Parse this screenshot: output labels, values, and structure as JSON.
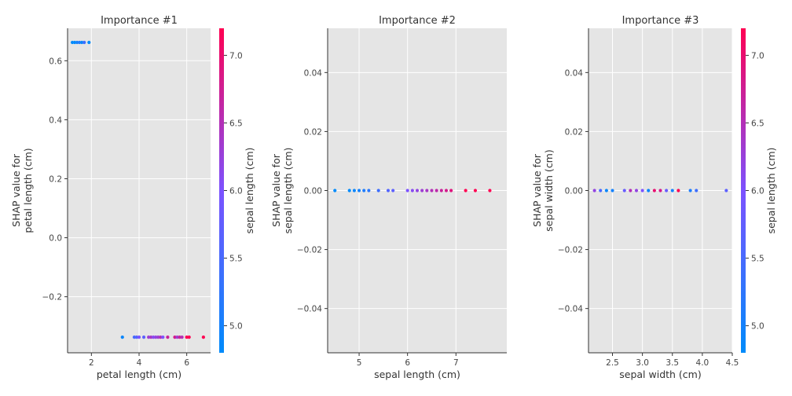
{
  "chart_data": [
    {
      "type": "scatter",
      "title": "Importance #1",
      "xlabel": "petal length (cm)",
      "ylabel_lines": [
        "SHAP value for",
        "petal length (cm)"
      ],
      "xlim": [
        1.0,
        7.0
      ],
      "ylim": [
        -0.39,
        0.71
      ],
      "xticks": [
        2,
        4,
        6
      ],
      "yticks": [
        -0.2,
        0.0,
        0.2,
        0.4,
        0.6
      ],
      "ytick_labels": [
        "−0.2",
        "0.0",
        "0.2",
        "0.4",
        "0.6"
      ],
      "grid": true,
      "points": [
        {
          "x": 1.2,
          "y": 0.662,
          "c": 4.6
        },
        {
          "x": 1.3,
          "y": 0.662,
          "c": 4.8
        },
        {
          "x": 1.4,
          "y": 0.662,
          "c": 5.0
        },
        {
          "x": 1.5,
          "y": 0.662,
          "c": 5.1
        },
        {
          "x": 1.6,
          "y": 0.662,
          "c": 4.9
        },
        {
          "x": 1.7,
          "y": 0.662,
          "c": 5.4
        },
        {
          "x": 1.9,
          "y": 0.662,
          "c": 4.8
        },
        {
          "x": 3.3,
          "y": -0.337,
          "c": 4.9
        },
        {
          "x": 3.8,
          "y": -0.337,
          "c": 5.5
        },
        {
          "x": 3.9,
          "y": -0.337,
          "c": 5.6
        },
        {
          "x": 4.0,
          "y": -0.337,
          "c": 6.0
        },
        {
          "x": 4.2,
          "y": -0.337,
          "c": 5.7
        },
        {
          "x": 4.4,
          "y": -0.337,
          "c": 6.3
        },
        {
          "x": 4.5,
          "y": -0.337,
          "c": 6.4
        },
        {
          "x": 4.6,
          "y": -0.337,
          "c": 6.1
        },
        {
          "x": 4.7,
          "y": -0.337,
          "c": 6.2
        },
        {
          "x": 4.8,
          "y": -0.337,
          "c": 6.3
        },
        {
          "x": 4.9,
          "y": -0.337,
          "c": 6.5
        },
        {
          "x": 5.0,
          "y": -0.337,
          "c": 6.0
        },
        {
          "x": 5.2,
          "y": -0.337,
          "c": 6.7
        },
        {
          "x": 5.5,
          "y": -0.337,
          "c": 6.8
        },
        {
          "x": 5.6,
          "y": -0.337,
          "c": 6.3
        },
        {
          "x": 5.7,
          "y": -0.337,
          "c": 6.7
        },
        {
          "x": 5.8,
          "y": -0.337,
          "c": 6.5
        },
        {
          "x": 6.0,
          "y": -0.337,
          "c": 7.2
        },
        {
          "x": 6.1,
          "y": -0.337,
          "c": 7.2
        },
        {
          "x": 6.7,
          "y": -0.337,
          "c": 7.7
        }
      ],
      "colorbar": {
        "label": "sepal length (cm)",
        "range": [
          4.8,
          7.2
        ],
        "ticks": [
          5.0,
          5.5,
          6.0,
          6.5,
          7.0
        ],
        "tick_labels": [
          "5.0",
          "5.5",
          "6.0",
          "6.5",
          "7.0"
        ]
      }
    },
    {
      "type": "scatter",
      "title": "Importance #2",
      "xlabel": "sepal length (cm)",
      "ylabel_lines": [
        "SHAP value for",
        "sepal length (cm)"
      ],
      "xlim": [
        4.35,
        8.05
      ],
      "ylim": [
        -0.055,
        0.055
      ],
      "xticks": [
        5,
        6,
        7
      ],
      "yticks": [
        -0.04,
        -0.02,
        0.0,
        0.02,
        0.04
      ],
      "ytick_labels": [
        "−0.04",
        "−0.02",
        "0.00",
        "0.02",
        "0.04"
      ],
      "grid": true,
      "points": [
        {
          "x": 4.5,
          "y": 0,
          "c": 4.5
        },
        {
          "x": 4.8,
          "y": 0,
          "c": 4.8
        },
        {
          "x": 4.9,
          "y": 0,
          "c": 4.9
        },
        {
          "x": 5.0,
          "y": 0,
          "c": 5.0
        },
        {
          "x": 5.1,
          "y": 0,
          "c": 5.1
        },
        {
          "x": 5.2,
          "y": 0,
          "c": 5.2
        },
        {
          "x": 5.4,
          "y": 0,
          "c": 5.4
        },
        {
          "x": 5.6,
          "y": 0,
          "c": 5.6
        },
        {
          "x": 5.7,
          "y": 0,
          "c": 5.7
        },
        {
          "x": 6.0,
          "y": 0,
          "c": 6.0
        },
        {
          "x": 6.1,
          "y": 0,
          "c": 6.1
        },
        {
          "x": 6.2,
          "y": 0,
          "c": 6.2
        },
        {
          "x": 6.3,
          "y": 0,
          "c": 6.3
        },
        {
          "x": 6.4,
          "y": 0,
          "c": 6.4
        },
        {
          "x": 6.5,
          "y": 0,
          "c": 6.5
        },
        {
          "x": 6.6,
          "y": 0,
          "c": 6.6
        },
        {
          "x": 6.7,
          "y": 0,
          "c": 6.7
        },
        {
          "x": 6.8,
          "y": 0,
          "c": 6.8
        },
        {
          "x": 6.9,
          "y": 0,
          "c": 6.9
        },
        {
          "x": 7.2,
          "y": 0,
          "c": 7.2
        },
        {
          "x": 7.4,
          "y": 0,
          "c": 7.4
        },
        {
          "x": 7.7,
          "y": 0,
          "c": 7.7
        }
      ]
    },
    {
      "type": "scatter",
      "title": "Importance #3",
      "xlabel": "sepal width (cm)",
      "ylabel_lines": [
        "SHAP value for",
        "sepal width (cm)"
      ],
      "xlim": [
        2.1,
        4.5
      ],
      "ylim": [
        -0.055,
        0.055
      ],
      "xticks": [
        2.5,
        3.0,
        3.5,
        4.0,
        4.5
      ],
      "xtick_labels": [
        "2.5",
        "3.0",
        "3.5",
        "4.0",
        "4.5"
      ],
      "yticks": [
        -0.04,
        -0.02,
        0.0,
        0.02,
        0.04
      ],
      "ytick_labels": [
        "−0.04",
        "−0.02",
        "0.00",
        "0.02",
        "0.04"
      ],
      "grid": true,
      "points": [
        {
          "x": 2.2,
          "y": 0,
          "c": 6.2
        },
        {
          "x": 2.3,
          "y": 0,
          "c": 5.5
        },
        {
          "x": 2.4,
          "y": 0,
          "c": 4.9
        },
        {
          "x": 2.5,
          "y": 0,
          "c": 5.0
        },
        {
          "x": 2.7,
          "y": 0,
          "c": 5.8
        },
        {
          "x": 2.8,
          "y": 0,
          "c": 6.5
        },
        {
          "x": 2.9,
          "y": 0,
          "c": 6.2
        },
        {
          "x": 3.0,
          "y": 0,
          "c": 6.0
        },
        {
          "x": 3.1,
          "y": 0,
          "c": 4.9
        },
        {
          "x": 3.2,
          "y": 0,
          "c": 7.0
        },
        {
          "x": 3.3,
          "y": 0,
          "c": 6.8
        },
        {
          "x": 3.4,
          "y": 0,
          "c": 5.8
        },
        {
          "x": 3.5,
          "y": 0,
          "c": 5.0
        },
        {
          "x": 3.6,
          "y": 0,
          "c": 7.2
        },
        {
          "x": 3.8,
          "y": 0,
          "c": 5.1
        },
        {
          "x": 3.9,
          "y": 0,
          "c": 5.4
        },
        {
          "x": 4.4,
          "y": 0,
          "c": 5.7
        }
      ],
      "colorbar": {
        "label": "sepal length (cm)",
        "range": [
          4.8,
          7.2
        ],
        "ticks": [
          5.0,
          5.5,
          6.0,
          6.5,
          7.0
        ],
        "tick_labels": [
          "5.0",
          "5.5",
          "6.0",
          "6.5",
          "7.0"
        ]
      }
    }
  ],
  "colors": {
    "plot_bg": "#e5e5e5",
    "grid": "#ffffff",
    "low": "#008bfb",
    "mid": "#7c52ff",
    "high": "#ff0052"
  }
}
